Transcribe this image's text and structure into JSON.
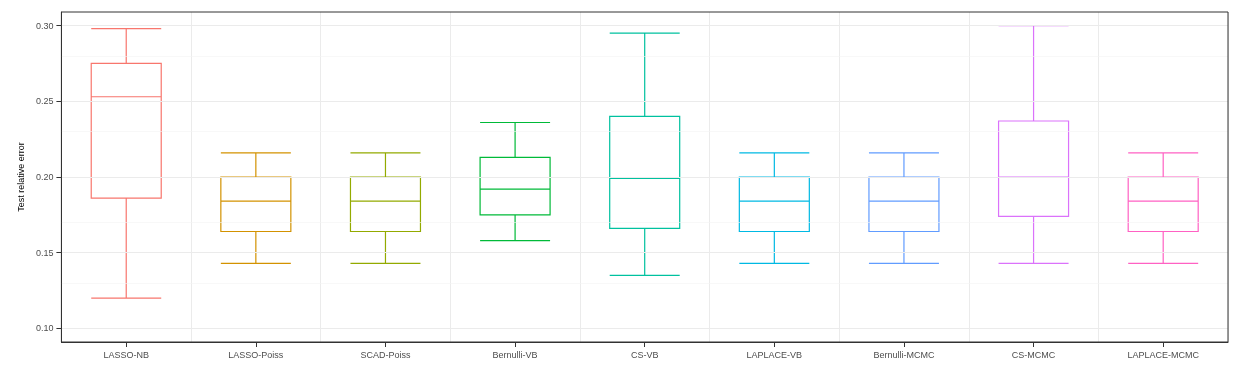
{
  "chart_data": {
    "type": "box",
    "ylabel": "Test relative error",
    "categories": [
      "LASSO-NB",
      "LASSO-Poiss",
      "SCAD-Poiss",
      "Bernulli-VB",
      "CS-VB",
      "LAPLACE-VB",
      "Bernulli-MCMC",
      "CS-MCMC",
      "LAPLACE-MCMC"
    ],
    "boxes": [
      {
        "low": 0.12,
        "q1": 0.186,
        "median": 0.253,
        "q3": 0.275,
        "high": 0.298
      },
      {
        "low": 0.143,
        "q1": 0.164,
        "median": 0.184,
        "q3": 0.2,
        "high": 0.216
      },
      {
        "low": 0.143,
        "q1": 0.164,
        "median": 0.184,
        "q3": 0.2,
        "high": 0.216
      },
      {
        "low": 0.158,
        "q1": 0.175,
        "median": 0.192,
        "q3": 0.213,
        "high": 0.236
      },
      {
        "low": 0.135,
        "q1": 0.166,
        "median": 0.199,
        "q3": 0.24,
        "high": 0.295
      },
      {
        "low": 0.143,
        "q1": 0.164,
        "median": 0.184,
        "q3": 0.2,
        "high": 0.216
      },
      {
        "low": 0.143,
        "q1": 0.164,
        "median": 0.184,
        "q3": 0.2,
        "high": 0.216
      },
      {
        "low": 0.143,
        "q1": 0.174,
        "median": 0.2,
        "q3": 0.237,
        "high": 0.3
      },
      {
        "low": 0.143,
        "q1": 0.164,
        "median": 0.184,
        "q3": 0.2,
        "high": 0.216
      }
    ],
    "colors": [
      "#f8766d",
      "#d39200",
      "#93aa00",
      "#00ba38",
      "#00c19f",
      "#00b9e3",
      "#619cff",
      "#db72fb",
      "#ff61c3"
    ],
    "ylim": [
      0.091,
      0.309
    ],
    "yticks": [
      {
        "value": 0.1,
        "label": "0.10"
      },
      {
        "value": 0.15,
        "label": "0.15"
      },
      {
        "value": 0.2,
        "label": "0.20"
      },
      {
        "value": 0.25,
        "label": "0.25"
      },
      {
        "value": 0.3,
        "label": "0.30"
      }
    ],
    "grid": true
  }
}
